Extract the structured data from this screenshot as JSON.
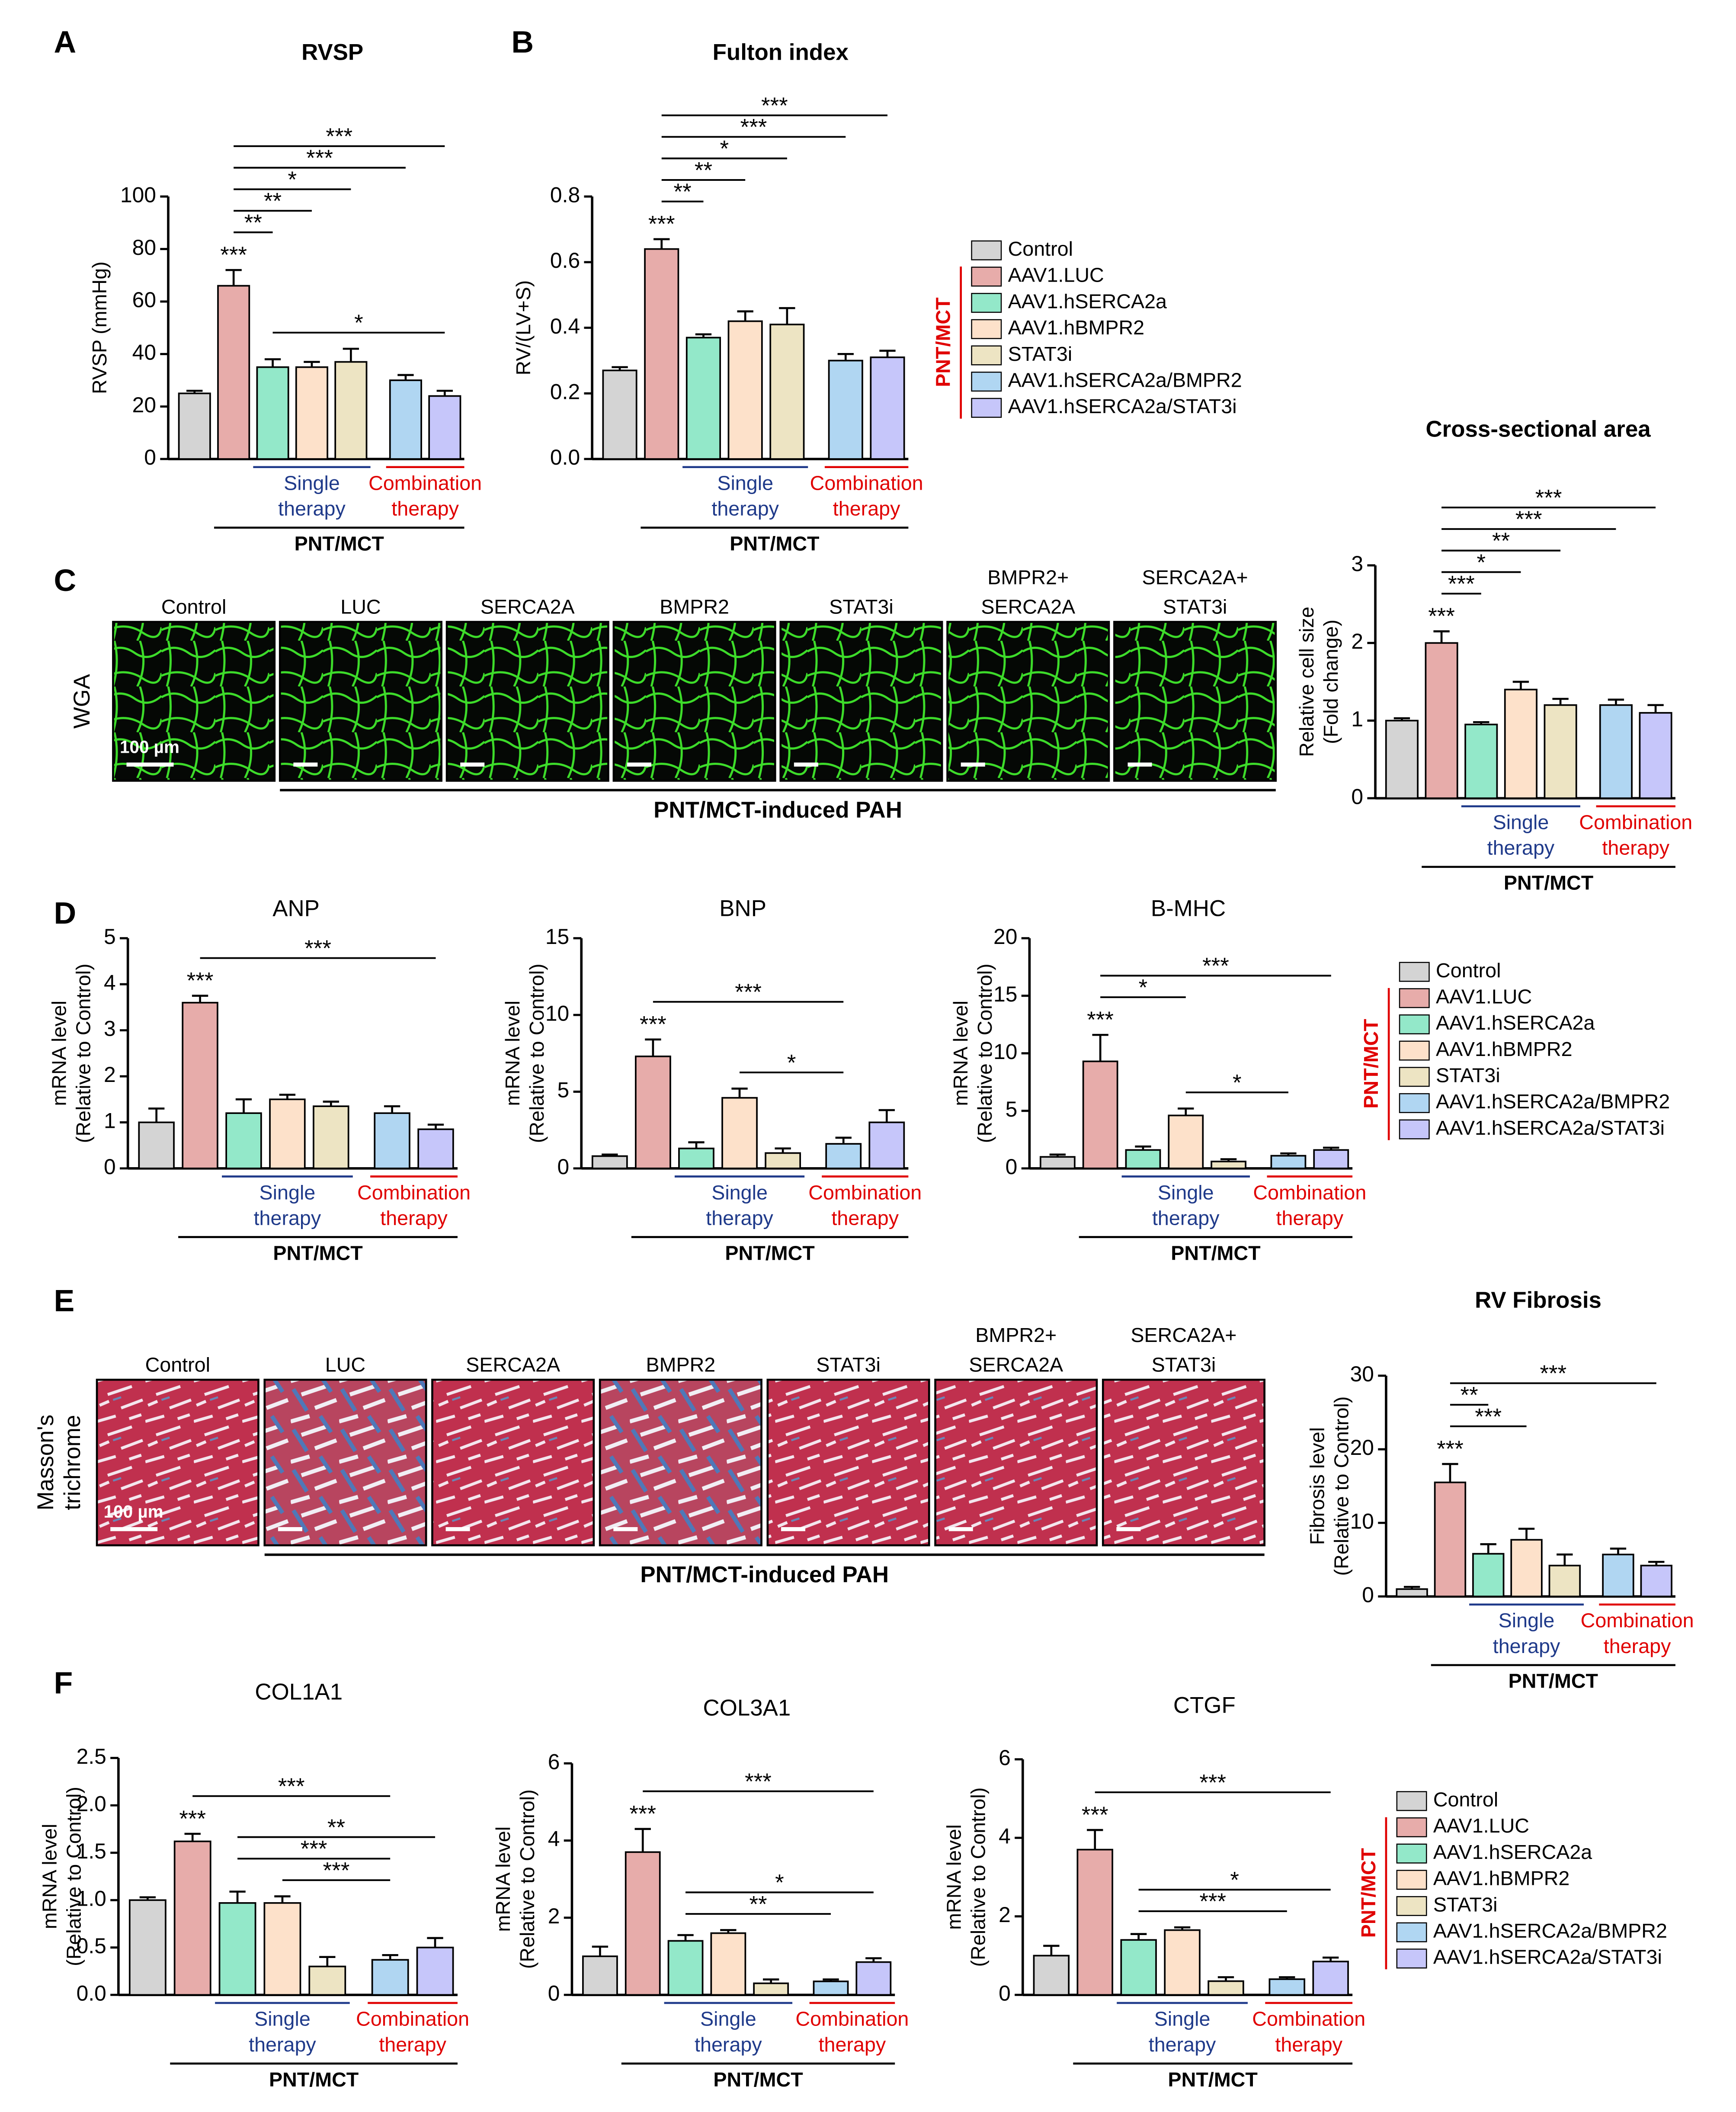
{
  "panels": [
    "A",
    "B",
    "C",
    "D",
    "E",
    "F"
  ],
  "groups": [
    {
      "name": "Control",
      "color": "#d4d4d4"
    },
    {
      "name": "AAV1.LUC",
      "color": "#e7acaa"
    },
    {
      "name": "AAV1.hSERCA2a",
      "color": "#93e8c9"
    },
    {
      "name": "AAV1.hBMPR2",
      "color": "#fde1ca"
    },
    {
      "name": "STAT3i",
      "color": "#ede4c3"
    },
    {
      "name": "AAV1.hSERCA2a/BMPR2",
      "color": "#b0d6f2"
    },
    {
      "name": "AAV1.hSERCA2a/STAT3i",
      "color": "#c6c6fa"
    }
  ],
  "legend_side": "PNT/MCT",
  "groupings": [
    {
      "label": [
        "Single",
        "therapy"
      ],
      "color": "#1f3a8a",
      "groups": [
        2,
        4
      ]
    },
    {
      "label": [
        "Combination",
        "therapy"
      ],
      "color": "#e00000",
      "groups": [
        5,
        6
      ]
    },
    {
      "label": [
        "PNT/MCT"
      ],
      "color": "#000000",
      "groups": [
        1,
        6
      ]
    }
  ],
  "micrographs": [
    {
      "side": [
        "WGA"
      ],
      "labels": [
        [
          "Control"
        ],
        [
          "LUC"
        ],
        [
          "SERCA2A"
        ],
        [
          "BMPR2"
        ],
        [
          "STAT3i"
        ],
        [
          "BMPR2+",
          "SERCA2A"
        ],
        [
          "SERCA2A+",
          "STAT3i"
        ]
      ],
      "scale": "100 µm",
      "caption": "PNT/MCT-induced PAH"
    },
    {
      "side": [
        "Masson's",
        "trichrome"
      ],
      "labels": [
        [
          "Control"
        ],
        [
          "LUC"
        ],
        [
          "SERCA2A"
        ],
        [
          "BMPR2"
        ],
        [
          "STAT3i"
        ],
        [
          "BMPR2+",
          "SERCA2A"
        ],
        [
          "SERCA2A+",
          "STAT3i"
        ]
      ],
      "scale": "100 µm",
      "caption": "PNT/MCT-induced PAH"
    }
  ],
  "chart_data": [
    {
      "type": "bar",
      "title": "RVSP",
      "ylabel": [
        "RVSP (mmHg)"
      ],
      "ylim": [
        0,
        100
      ],
      "yticks": [
        0,
        20,
        40,
        60,
        80,
        100
      ],
      "values": [
        25,
        66,
        35,
        35,
        37,
        30,
        24
      ],
      "errors": [
        1,
        6,
        3,
        2,
        5,
        2,
        2
      ],
      "annotations": [
        {
          "text": "*",
          "groups": [
            2,
            6
          ]
        },
        {
          "text": "***",
          "groups": [
            1
          ]
        },
        {
          "text": "**",
          "groups": [
            1,
            2
          ]
        },
        {
          "text": "**",
          "groups": [
            1,
            3
          ]
        },
        {
          "text": "*",
          "groups": [
            1,
            4
          ]
        },
        {
          "text": "***",
          "groups": [
            1,
            5
          ]
        },
        {
          "text": "***",
          "groups": [
            1,
            6
          ]
        }
      ]
    },
    {
      "type": "bar",
      "title": "Fulton index",
      "ylabel": [
        "RV/(LV+S)"
      ],
      "ylim": [
        0,
        0.8
      ],
      "yticks": [
        {
          "value": 0,
          "label": "0.0"
        },
        0.2,
        0.4,
        0.6,
        0.8
      ],
      "values": [
        0.27,
        0.64,
        0.37,
        0.42,
        0.41,
        0.3,
        0.31
      ],
      "errors": [
        0.01,
        0.03,
        0.01,
        0.03,
        0.05,
        0.02,
        0.02
      ],
      "annotations": [
        {
          "text": "***",
          "groups": [
            1
          ]
        },
        {
          "text": "**",
          "groups": [
            1,
            2
          ]
        },
        {
          "text": "**",
          "groups": [
            1,
            3
          ]
        },
        {
          "text": "*",
          "groups": [
            1,
            4
          ]
        },
        {
          "text": "***",
          "groups": [
            1,
            5
          ]
        },
        {
          "text": "***",
          "groups": [
            1,
            6
          ]
        }
      ]
    },
    {
      "type": "bar",
      "title": "Cross-sectional area",
      "ylabel": [
        "Relative cell size",
        "(Fold change)"
      ],
      "ylim": [
        0,
        3
      ],
      "yticks": [
        0,
        1,
        2,
        3
      ],
      "values": [
        1.0,
        2.0,
        0.95,
        1.4,
        1.2,
        1.2,
        1.1
      ],
      "errors": [
        0.03,
        0.15,
        0.03,
        0.1,
        0.08,
        0.07,
        0.1
      ],
      "annotations": [
        {
          "text": "***",
          "groups": [
            1
          ]
        },
        {
          "text": "***",
          "groups": [
            1,
            2
          ]
        },
        {
          "text": "*",
          "groups": [
            1,
            3
          ]
        },
        {
          "text": "**",
          "groups": [
            1,
            4
          ]
        },
        {
          "text": "***",
          "groups": [
            1,
            5
          ]
        },
        {
          "text": "***",
          "groups": [
            1,
            6
          ]
        }
      ]
    },
    {
      "type": "bar",
      "title": "ANP",
      "ylabel": [
        "mRNA level",
        "(Relative to Control)"
      ],
      "ylim": [
        0,
        5
      ],
      "yticks": [
        0,
        1,
        2,
        3,
        4,
        5
      ],
      "values": [
        1.0,
        3.6,
        1.2,
        1.5,
        1.35,
        1.2,
        0.85
      ],
      "errors": [
        0.3,
        0.15,
        0.3,
        0.1,
        0.1,
        0.15,
        0.1
      ],
      "annotations": [
        {
          "text": "***",
          "groups": [
            1
          ]
        },
        {
          "text": "***",
          "groups": [
            1,
            6
          ]
        }
      ]
    },
    {
      "type": "bar",
      "title": "BNP",
      "ylabel": [
        "mRNA level",
        "(Relative to Control)"
      ],
      "ylim": [
        0,
        15
      ],
      "yticks": [
        0,
        5,
        10,
        15
      ],
      "values": [
        0.8,
        7.3,
        1.3,
        4.6,
        1.0,
        1.6,
        3.0
      ],
      "errors": [
        0.1,
        1.1,
        0.4,
        0.6,
        0.3,
        0.4,
        0.8
      ],
      "annotations": [
        {
          "text": "*",
          "groups": [
            3,
            5
          ]
        },
        {
          "text": "***",
          "groups": [
            1
          ]
        },
        {
          "text": "***",
          "groups": [
            1,
            5
          ]
        }
      ]
    },
    {
      "type": "bar",
      "title": "B-MHC",
      "ylabel": [
        "mRNA level",
        "(Relative to Control)"
      ],
      "ylim": [
        0,
        20
      ],
      "yticks": [
        0,
        5,
        10,
        15,
        20
      ],
      "values": [
        1.0,
        9.3,
        1.6,
        4.6,
        0.6,
        1.1,
        1.6
      ],
      "errors": [
        0.2,
        2.3,
        0.3,
        0.6,
        0.2,
        0.2,
        0.2
      ],
      "annotations": [
        {
          "text": "*",
          "groups": [
            3,
            5
          ]
        },
        {
          "text": "***",
          "groups": [
            1
          ]
        },
        {
          "text": "*",
          "groups": [
            1,
            3
          ]
        },
        {
          "text": "***",
          "groups": [
            1,
            6
          ]
        }
      ]
    },
    {
      "type": "bar",
      "title": "RV Fibrosis",
      "ylabel": [
        "Fibrosis level",
        "(Relative to Control)"
      ],
      "ylim": [
        0,
        30
      ],
      "yticks": [
        0,
        10,
        20,
        30
      ],
      "values": [
        1.0,
        15.5,
        5.8,
        7.7,
        4.2,
        5.7,
        4.2
      ],
      "errors": [
        0.3,
        2.5,
        1.3,
        1.5,
        1.5,
        0.8,
        0.5
      ],
      "annotations": [
        {
          "text": "***",
          "groups": [
            1
          ]
        },
        {
          "text": "***",
          "groups": [
            1,
            3
          ]
        },
        {
          "text": "**",
          "groups": [
            1,
            2
          ]
        },
        {
          "text": "***",
          "groups": [
            1,
            6
          ]
        }
      ]
    },
    {
      "type": "bar",
      "title": "COL1A1",
      "ylabel": [
        "mRNA level",
        "(Relative to Control)"
      ],
      "ylim": [
        0,
        2.5
      ],
      "yticks": [
        {
          "value": 0,
          "label": "0.0"
        },
        0.5,
        {
          "value": 1,
          "label": "1.0"
        },
        1.5,
        {
          "value": 2,
          "label": "2.0"
        },
        2.5
      ],
      "values": [
        1.0,
        1.62,
        0.97,
        0.97,
        0.3,
        0.37,
        0.5
      ],
      "errors": [
        0.03,
        0.08,
        0.12,
        0.07,
        0.1,
        0.05,
        0.1
      ],
      "annotations": [
        {
          "text": "***",
          "groups": [
            3,
            5
          ]
        },
        {
          "text": "***",
          "groups": [
            2,
            5
          ]
        },
        {
          "text": "**",
          "groups": [
            2,
            6
          ]
        },
        {
          "text": "***",
          "groups": [
            1
          ]
        },
        {
          "text": "***",
          "groups": [
            1,
            5
          ]
        }
      ]
    },
    {
      "type": "bar",
      "title": "COL3A1",
      "ylabel": [
        "mRNA level",
        "(Relative to Control)"
      ],
      "ylim": [
        0,
        6
      ],
      "yticks": [
        0,
        2,
        4,
        6
      ],
      "values": [
        1.0,
        3.7,
        1.4,
        1.6,
        0.3,
        0.35,
        0.85
      ],
      "errors": [
        0.25,
        0.6,
        0.15,
        0.08,
        0.1,
        0.05,
        0.1
      ],
      "annotations": [
        {
          "text": "**",
          "groups": [
            2,
            5
          ]
        },
        {
          "text": "*",
          "groups": [
            2,
            6
          ]
        },
        {
          "text": "***",
          "groups": [
            1
          ]
        },
        {
          "text": "***",
          "groups": [
            1,
            6
          ]
        }
      ]
    },
    {
      "type": "bar",
      "title": "CTGF",
      "ylabel": [
        "mRNA level",
        "(Relative to Control)"
      ],
      "ylim": [
        0,
        6
      ],
      "yticks": [
        0,
        2,
        4,
        6
      ],
      "values": [
        1.0,
        3.7,
        1.4,
        1.65,
        0.35,
        0.4,
        0.85
      ],
      "errors": [
        0.25,
        0.5,
        0.15,
        0.07,
        0.1,
        0.05,
        0.1
      ],
      "annotations": [
        {
          "text": "***",
          "groups": [
            2,
            5
          ]
        },
        {
          "text": "*",
          "groups": [
            2,
            6
          ]
        },
        {
          "text": "***",
          "groups": [
            1
          ]
        },
        {
          "text": "***",
          "groups": [
            1,
            6
          ]
        }
      ]
    }
  ]
}
